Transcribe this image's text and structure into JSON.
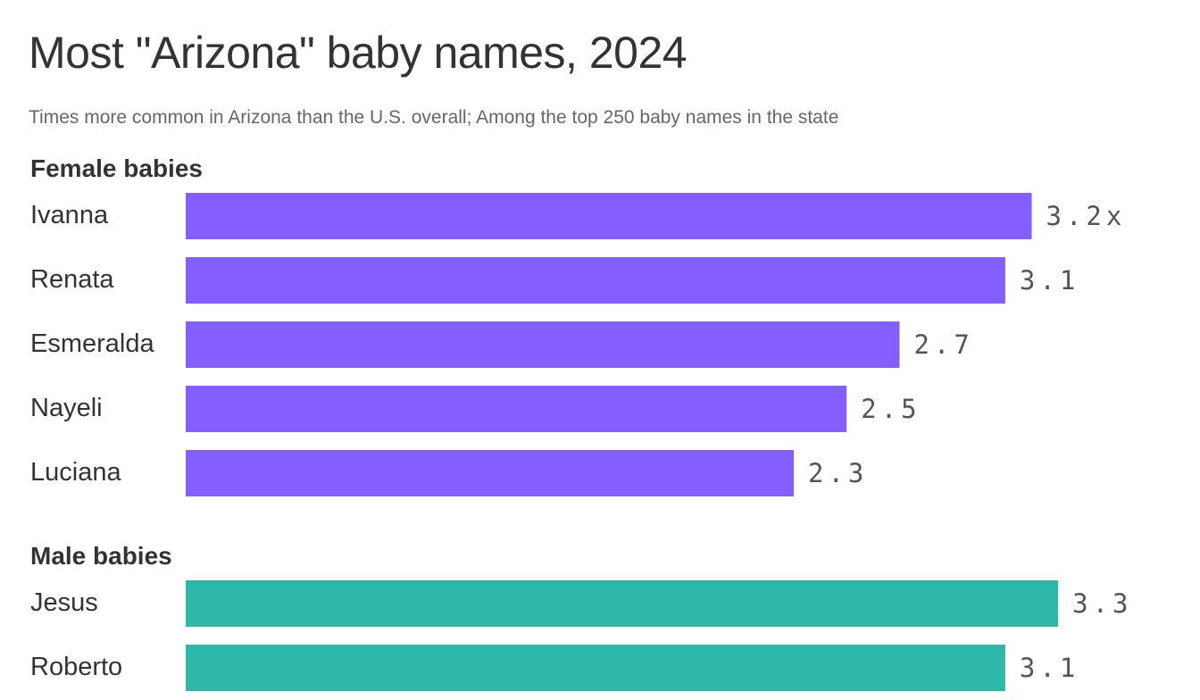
{
  "title": "Most \"Arizona\" baby names, 2024",
  "subtitle": "Times more common in Arizona than the U.S. overall; Among the top 250 baby names in the state",
  "chart_data": {
    "type": "bar",
    "orientation": "horizontal",
    "value_suffix_first": "x",
    "groups": [
      {
        "label": "Female babies",
        "color": "#845EFF",
        "categories": [
          "Ivanna",
          "Renata",
          "Esmeralda",
          "Nayeli",
          "Luciana"
        ],
        "values": [
          3.2,
          3.1,
          2.7,
          2.5,
          2.3
        ]
      },
      {
        "label": "Male babies",
        "color": "#2EB8AA",
        "categories": [
          "Jesus",
          "Roberto"
        ],
        "values": [
          3.3,
          3.1
        ]
      }
    ]
  }
}
